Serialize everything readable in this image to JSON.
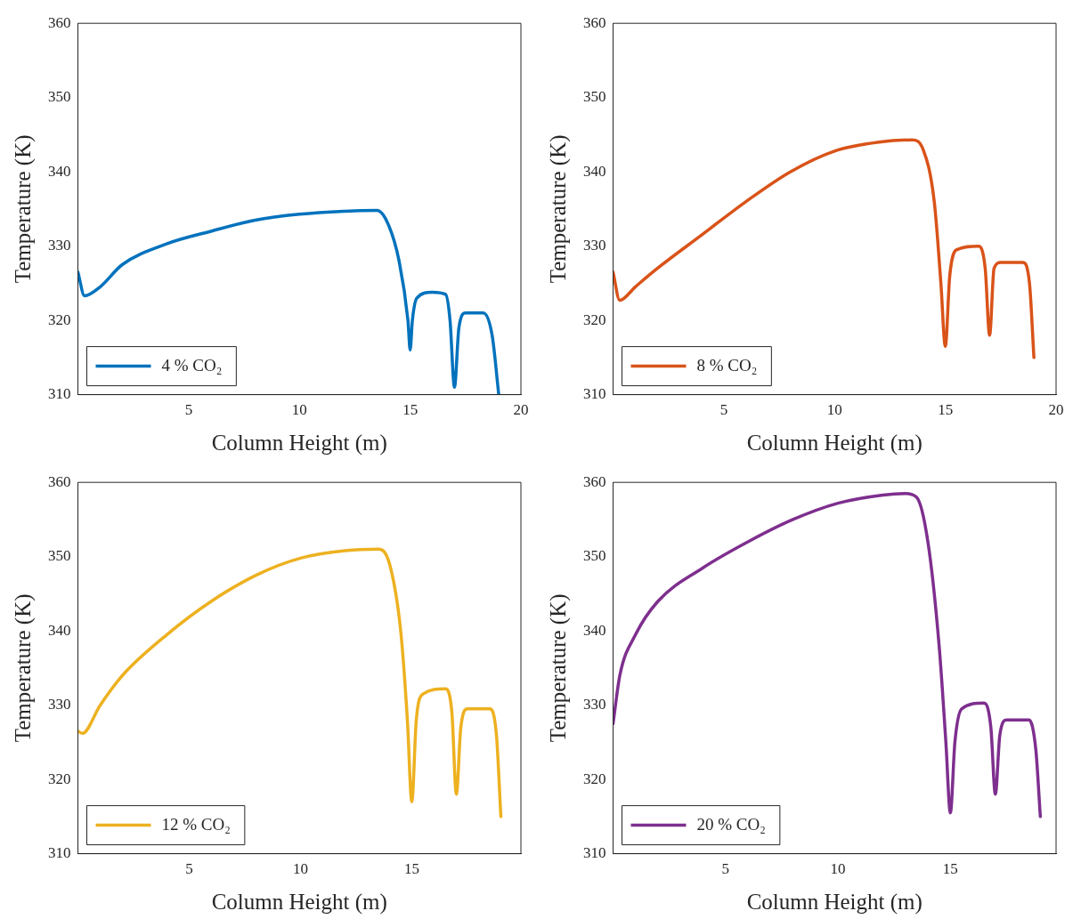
{
  "chart_data": [
    {
      "type": "line",
      "xlabel": "Column Height (m)",
      "ylabel": "Temperature (K)",
      "xlim": [
        0,
        20
      ],
      "xticks": [
        5,
        10,
        15,
        20
      ],
      "ylim": [
        310,
        360
      ],
      "yticks": [
        310,
        320,
        330,
        340,
        350,
        360
      ],
      "grid": false,
      "legend": "bottom left",
      "marker": "none",
      "line_style": "solid",
      "x": [
        0,
        0.3,
        1,
        2,
        4,
        6,
        8,
        10,
        12,
        13.5,
        14,
        14.5,
        14.9,
        15,
        15.1,
        15.3,
        16,
        16.6,
        16.8,
        17,
        17.2,
        17.5,
        18.3,
        18.7,
        19
      ],
      "series": [
        {
          "name": "4 % CO₂",
          "color": "#0072bd",
          "values": [
            326.5,
            323.3,
            324.5,
            327.5,
            330.3,
            332,
            333.5,
            334.3,
            334.7,
            334.8,
            333,
            328,
            320,
            316,
            320,
            323,
            323.8,
            323.5,
            320,
            311,
            319,
            321,
            321,
            318,
            310
          ]
        }
      ]
    },
    {
      "type": "line",
      "xlabel": "Column Height (m)",
      "ylabel": "Temperature (K)",
      "xlim": [
        0,
        20
      ],
      "xticks": [
        5,
        10,
        15,
        20
      ],
      "ylim": [
        310,
        360
      ],
      "yticks": [
        310,
        320,
        330,
        340,
        350,
        360
      ],
      "grid": false,
      "legend": "bottom left",
      "marker": "none",
      "line_style": "solid",
      "x": [
        0,
        0.3,
        1,
        2,
        4,
        6,
        8,
        10,
        12,
        13.5,
        14,
        14.5,
        14.8,
        15,
        15.2,
        15.5,
        16.5,
        16.8,
        17,
        17.2,
        17.5,
        18.5,
        18.8,
        19
      ],
      "series": [
        {
          "name": "8 % CO₂",
          "color": "#d95319",
          "values": [
            326.5,
            322.7,
            324.5,
            327,
            331.5,
            336,
            340,
            342.8,
            344,
            344.3,
            343,
            336,
            325,
            316.5,
            326,
            329.5,
            330,
            327,
            318,
            327,
            327.8,
            327.8,
            325,
            315
          ]
        }
      ]
    },
    {
      "type": "line",
      "xlabel": "Column Height (m)",
      "ylabel": "Temperature (K)",
      "xlim": [
        0,
        19.9
      ],
      "xticks": [
        5,
        10,
        15
      ],
      "ylim": [
        310,
        360
      ],
      "yticks": [
        310,
        320,
        330,
        340,
        350,
        360
      ],
      "grid": false,
      "legend": "bottom left",
      "marker": "none",
      "line_style": "solid",
      "x": [
        0,
        0.2,
        1,
        2,
        4,
        6,
        8,
        10,
        12,
        13.5,
        14,
        14.5,
        14.8,
        15,
        15.2,
        15.5,
        16.5,
        16.8,
        17,
        17.2,
        17.5,
        18.5,
        18.8,
        19
      ],
      "series": [
        {
          "name": "12 % CO₂",
          "color": "#edb120",
          "values": [
            326.5,
            326.2,
            330,
            334,
            339.5,
            344,
            347.5,
            349.8,
            350.8,
            351,
            349,
            340,
            328,
            317,
            328,
            331.5,
            332.2,
            329,
            318,
            327,
            329.5,
            329.5,
            326,
            315
          ]
        }
      ]
    },
    {
      "type": "line",
      "xlabel": "Column Height (m)",
      "ylabel": "Temperature (K)",
      "xlim": [
        0,
        19.7
      ],
      "xticks": [
        5,
        10,
        15
      ],
      "ylim": [
        310,
        360
      ],
      "yticks": [
        310,
        320,
        330,
        340,
        350,
        360
      ],
      "grid": false,
      "legend": "bottom left",
      "marker": "none",
      "line_style": "solid",
      "x": [
        0,
        0.3,
        1,
        2,
        4,
        6,
        8,
        10,
        12,
        13,
        13.5,
        14,
        14.5,
        14.8,
        15,
        15.2,
        15.5,
        16.5,
        16.8,
        17,
        17.2,
        17.5,
        18.5,
        18.8,
        19
      ],
      "series": [
        {
          "name": "20 % CO₂",
          "color": "#7e2f8e",
          "values": [
            327.5,
            334,
            339.5,
            344,
            348.5,
            352,
            355,
            357.2,
            358.3,
            358.5,
            358,
            352,
            338,
            325,
            315.5,
            325,
            329.5,
            330.3,
            327,
            318,
            326,
            328,
            328,
            324,
            315
          ]
        }
      ]
    }
  ]
}
